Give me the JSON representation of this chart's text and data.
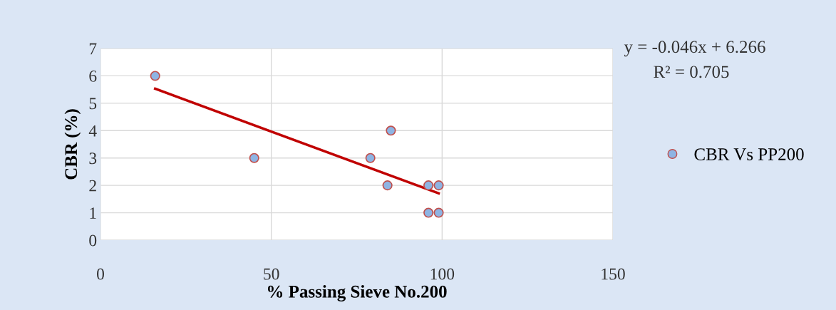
{
  "chart_data": {
    "type": "scatter",
    "xlabel": "% Passing Sieve No.200",
    "ylabel": "CBR (%)",
    "xlim": [
      0,
      150
    ],
    "xticks": [
      0,
      50,
      100,
      150
    ],
    "ylim": [
      0,
      7
    ],
    "yticks": [
      0,
      1,
      2,
      3,
      4,
      5,
      6,
      7
    ],
    "grid": true,
    "legend": "right",
    "series": [
      {
        "name": "CBR Vs PP200",
        "marker": "circle",
        "color": "#8eb4e3",
        "x": [
          16,
          45,
          79,
          85,
          84,
          96,
          99,
          96,
          99
        ],
        "values": [
          6,
          3,
          3,
          4,
          2,
          2,
          2,
          1,
          1
        ]
      },
      {
        "type": "line",
        "color": "#c00000",
        "x": [
          16,
          99
        ],
        "values": [
          5.53,
          1.71
        ]
      }
    ],
    "annotations": [
      "y = -0.046x + 6.266",
      "R² = 0.705"
    ]
  }
}
